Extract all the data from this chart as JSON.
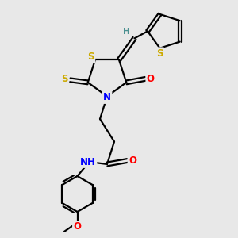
{
  "bg_color": "#e8e8e8",
  "atom_colors": {
    "S": "#ccaa00",
    "N": "#0000ff",
    "O": "#ff0000",
    "C": "#000000",
    "H": "#4a9090"
  },
  "bond_color": "#000000",
  "line_width": 1.6,
  "font_size_atoms": 8.5,
  "font_size_h": 7.5
}
